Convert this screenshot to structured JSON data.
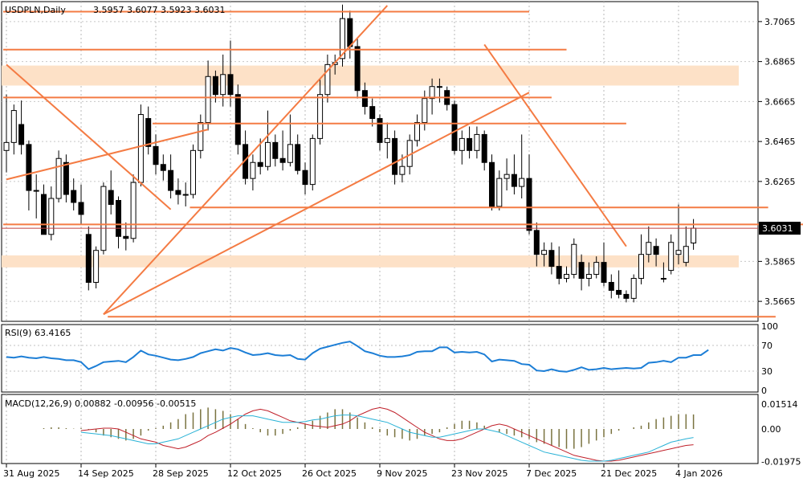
{
  "chart_data": [
    {
      "type": "candlestick",
      "symbol_label": "USDPLN,Daily",
      "ohlc_label": "3.5957 3.6077 3.5923 3.6031",
      "current_price_label": "3.6031",
      "current_price": 3.6031,
      "ylim": [
        3.5565,
        3.7165
      ],
      "y_ticks": [
        "3.7065",
        "3.6865",
        "3.6665",
        "3.6465",
        "3.6265",
        "3.5865",
        "3.5665"
      ],
      "x_ticks": [
        "31 Aug 2025",
        "14 Sep 2025",
        "28 Sep 2025",
        "12 Oct 2025",
        "26 Oct 2025",
        "9 Nov 2025",
        "23 Nov 2025",
        "7 Dec 2025",
        "21 Dec 2025",
        "4 Jan 2026"
      ],
      "candles": [
        {
          "o": 3.642,
          "h": 3.67,
          "l": 3.631,
          "c": 3.646
        },
        {
          "o": 3.646,
          "h": 3.665,
          "l": 3.64,
          "c": 3.662
        },
        {
          "o": 3.655,
          "h": 3.667,
          "l": 3.64,
          "c": 3.645
        },
        {
          "o": 3.645,
          "h": 3.647,
          "l": 3.612,
          "c": 3.622
        },
        {
          "o": 3.622,
          "h": 3.63,
          "l": 3.608,
          "c": 3.622
        },
        {
          "o": 3.62,
          "h": 3.625,
          "l": 3.6,
          "c": 3.6
        },
        {
          "o": 3.6,
          "h": 3.624,
          "l": 3.597,
          "c": 3.618
        },
        {
          "o": 3.618,
          "h": 3.642,
          "l": 3.616,
          "c": 3.638
        },
        {
          "o": 3.636,
          "h": 3.64,
          "l": 3.616,
          "c": 3.62
        },
        {
          "o": 3.622,
          "h": 3.628,
          "l": 3.612,
          "c": 3.616
        },
        {
          "o": 3.616,
          "h": 3.625,
          "l": 3.605,
          "c": 3.61
        },
        {
          "o": 3.6,
          "h": 3.604,
          "l": 3.572,
          "c": 3.576
        },
        {
          "o": 3.576,
          "h": 3.594,
          "l": 3.573,
          "c": 3.592
        },
        {
          "o": 3.592,
          "h": 3.626,
          "l": 3.59,
          "c": 3.624
        },
        {
          "o": 3.622,
          "h": 3.632,
          "l": 3.61,
          "c": 3.615
        },
        {
          "o": 3.617,
          "h": 3.619,
          "l": 3.593,
          "c": 3.599
        },
        {
          "o": 3.599,
          "h": 3.606,
          "l": 3.592,
          "c": 3.598
        },
        {
          "o": 3.598,
          "h": 3.63,
          "l": 3.596,
          "c": 3.626
        },
        {
          "o": 3.626,
          "h": 3.665,
          "l": 3.624,
          "c": 3.66
        },
        {
          "o": 3.658,
          "h": 3.664,
          "l": 3.64,
          "c": 3.644
        },
        {
          "o": 3.644,
          "h": 3.65,
          "l": 3.63,
          "c": 3.635
        },
        {
          "o": 3.635,
          "h": 3.64,
          "l": 3.627,
          "c": 3.632
        },
        {
          "o": 3.632,
          "h": 3.64,
          "l": 3.618,
          "c": 3.622
        },
        {
          "o": 3.622,
          "h": 3.628,
          "l": 3.615,
          "c": 3.62
        },
        {
          "o": 3.62,
          "h": 3.626,
          "l": 3.614,
          "c": 3.62
        },
        {
          "o": 3.62,
          "h": 3.645,
          "l": 3.618,
          "c": 3.642
        },
        {
          "o": 3.642,
          "h": 3.66,
          "l": 3.638,
          "c": 3.656
        },
        {
          "o": 3.656,
          "h": 3.687,
          "l": 3.652,
          "c": 3.679
        },
        {
          "o": 3.679,
          "h": 3.682,
          "l": 3.666,
          "c": 3.67
        },
        {
          "o": 3.67,
          "h": 3.69,
          "l": 3.664,
          "c": 3.68
        },
        {
          "o": 3.68,
          "h": 3.697,
          "l": 3.664,
          "c": 3.67
        },
        {
          "o": 3.67,
          "h": 3.675,
          "l": 3.64,
          "c": 3.645
        },
        {
          "o": 3.645,
          "h": 3.652,
          "l": 3.625,
          "c": 3.628
        },
        {
          "o": 3.628,
          "h": 3.64,
          "l": 3.622,
          "c": 3.636
        },
        {
          "o": 3.636,
          "h": 3.648,
          "l": 3.63,
          "c": 3.634
        },
        {
          "o": 3.634,
          "h": 3.662,
          "l": 3.632,
          "c": 3.646
        },
        {
          "o": 3.646,
          "h": 3.65,
          "l": 3.634,
          "c": 3.638
        },
        {
          "o": 3.638,
          "h": 3.652,
          "l": 3.632,
          "c": 3.636
        },
        {
          "o": 3.636,
          "h": 3.66,
          "l": 3.634,
          "c": 3.645
        },
        {
          "o": 3.645,
          "h": 3.65,
          "l": 3.63,
          "c": 3.632
        },
        {
          "o": 3.632,
          "h": 3.636,
          "l": 3.62,
          "c": 3.625
        },
        {
          "o": 3.625,
          "h": 3.65,
          "l": 3.622,
          "c": 3.648
        },
        {
          "o": 3.648,
          "h": 3.678,
          "l": 3.645,
          "c": 3.67
        },
        {
          "o": 3.67,
          "h": 3.69,
          "l": 3.666,
          "c": 3.685
        },
        {
          "o": 3.685,
          "h": 3.69,
          "l": 3.68,
          "c": 3.686
        },
        {
          "o": 3.688,
          "h": 3.715,
          "l": 3.684,
          "c": 3.708
        },
        {
          "o": 3.708,
          "h": 3.712,
          "l": 3.688,
          "c": 3.694
        },
        {
          "o": 3.694,
          "h": 3.698,
          "l": 3.668,
          "c": 3.672
        },
        {
          "o": 3.672,
          "h": 3.676,
          "l": 3.66,
          "c": 3.664
        },
        {
          "o": 3.664,
          "h": 3.668,
          "l": 3.654,
          "c": 3.658
        },
        {
          "o": 3.658,
          "h": 3.66,
          "l": 3.642,
          "c": 3.646
        },
        {
          "o": 3.646,
          "h": 3.656,
          "l": 3.638,
          "c": 3.648
        },
        {
          "o": 3.648,
          "h": 3.652,
          "l": 3.625,
          "c": 3.63
        },
        {
          "o": 3.63,
          "h": 3.64,
          "l": 3.626,
          "c": 3.634
        },
        {
          "o": 3.634,
          "h": 3.65,
          "l": 3.63,
          "c": 3.647
        },
        {
          "o": 3.647,
          "h": 3.66,
          "l": 3.644,
          "c": 3.656
        },
        {
          "o": 3.656,
          "h": 3.672,
          "l": 3.652,
          "c": 3.668
        },
        {
          "o": 3.668,
          "h": 3.678,
          "l": 3.66,
          "c": 3.674
        },
        {
          "o": 3.674,
          "h": 3.678,
          "l": 3.666,
          "c": 3.674
        },
        {
          "o": 3.672,
          "h": 3.674,
          "l": 3.662,
          "c": 3.665
        },
        {
          "o": 3.665,
          "h": 3.667,
          "l": 3.64,
          "c": 3.642
        },
        {
          "o": 3.642,
          "h": 3.652,
          "l": 3.635,
          "c": 3.648
        },
        {
          "o": 3.648,
          "h": 3.654,
          "l": 3.638,
          "c": 3.642
        },
        {
          "o": 3.642,
          "h": 3.654,
          "l": 3.638,
          "c": 3.65
        },
        {
          "o": 3.65,
          "h": 3.652,
          "l": 3.632,
          "c": 3.636
        },
        {
          "o": 3.636,
          "h": 3.64,
          "l": 3.612,
          "c": 3.614
        },
        {
          "o": 3.614,
          "h": 3.632,
          "l": 3.612,
          "c": 3.628
        },
        {
          "o": 3.628,
          "h": 3.638,
          "l": 3.622,
          "c": 3.63
        },
        {
          "o": 3.63,
          "h": 3.64,
          "l": 3.62,
          "c": 3.624
        },
        {
          "o": 3.624,
          "h": 3.65,
          "l": 3.618,
          "c": 3.628
        },
        {
          "o": 3.628,
          "h": 3.64,
          "l": 3.6,
          "c": 3.602
        },
        {
          "o": 3.602,
          "h": 3.606,
          "l": 3.584,
          "c": 3.59
        },
        {
          "o": 3.59,
          "h": 3.596,
          "l": 3.584,
          "c": 3.592
        },
        {
          "o": 3.592,
          "h": 3.596,
          "l": 3.58,
          "c": 3.584
        },
        {
          "o": 3.584,
          "h": 3.594,
          "l": 3.575,
          "c": 3.578
        },
        {
          "o": 3.578,
          "h": 3.584,
          "l": 3.576,
          "c": 3.58
        },
        {
          "o": 3.58,
          "h": 3.598,
          "l": 3.578,
          "c": 3.595
        },
        {
          "o": 3.586,
          "h": 3.59,
          "l": 3.572,
          "c": 3.578
        },
        {
          "o": 3.578,
          "h": 3.586,
          "l": 3.574,
          "c": 3.58
        },
        {
          "o": 3.58,
          "h": 3.589,
          "l": 3.578,
          "c": 3.586
        },
        {
          "o": 3.586,
          "h": 3.596,
          "l": 3.574,
          "c": 3.576
        },
        {
          "o": 3.576,
          "h": 3.58,
          "l": 3.568,
          "c": 3.572
        },
        {
          "o": 3.572,
          "h": 3.582,
          "l": 3.568,
          "c": 3.57
        },
        {
          "o": 3.57,
          "h": 3.572,
          "l": 3.566,
          "c": 3.568
        },
        {
          "o": 3.568,
          "h": 3.58,
          "l": 3.566,
          "c": 3.578
        },
        {
          "o": 3.578,
          "h": 3.6,
          "l": 3.575,
          "c": 3.59
        },
        {
          "o": 3.59,
          "h": 3.604,
          "l": 3.586,
          "c": 3.596
        },
        {
          "o": 3.594,
          "h": 3.598,
          "l": 3.584,
          "c": 3.59
        },
        {
          "o": 3.578,
          "h": 3.586,
          "l": 3.576,
          "c": 3.578
        },
        {
          "o": 3.582,
          "h": 3.6,
          "l": 3.58,
          "c": 3.596
        },
        {
          "o": 3.59,
          "h": 3.615,
          "l": 3.585,
          "c": 3.592
        },
        {
          "o": 3.586,
          "h": 3.604,
          "l": 3.584,
          "c": 3.594
        },
        {
          "o": 3.5957,
          "h": 3.6077,
          "l": 3.5923,
          "c": 3.6031
        }
      ],
      "annotations": {
        "zones": [
          [
            3.6745,
            3.6845
          ],
          [
            3.5835,
            3.5895
          ]
        ],
        "hlines": [
          {
            "y": 3.7115,
            "i0": 0,
            "i1": 70
          },
          {
            "y": 3.6925,
            "i0": 0,
            "i1": 75
          },
          {
            "y": 3.6685,
            "i0": 0,
            "i1": 73
          },
          {
            "y": 3.6555,
            "i0": 20,
            "i1": 83
          },
          {
            "y": 3.6135,
            "i0": 25,
            "i1": 102
          },
          {
            "y": 3.605,
            "i0": 0,
            "i1": 111
          },
          {
            "y": 3.5588,
            "i0": 14,
            "i1": 103
          }
        ],
        "trendlines": [
          [
            0,
            3.685,
            22,
            3.6125
          ],
          [
            0,
            3.6275,
            27,
            3.6525
          ],
          [
            13,
            3.56,
            51,
            3.7145
          ],
          [
            13,
            3.56,
            70,
            3.671
          ],
          [
            64,
            3.695,
            83,
            3.594
          ]
        ]
      },
      "colors": {
        "bull": "#ffffff",
        "bear": "#000000",
        "line": "#f47b43",
        "zone": "#fde1c7",
        "rsi": "#1c7ed6",
        "macd_hist": "#7a7340",
        "macd_main": "#c0202a",
        "macd_signal": "#29b2d6"
      }
    },
    {
      "type": "line",
      "label": "RSI(9) 63.4165",
      "ylim": [
        0,
        100
      ],
      "y_ticks": [
        "100",
        "70",
        "30",
        "0"
      ],
      "levels": [
        70,
        30
      ],
      "values": [
        52,
        51,
        53,
        51,
        50,
        52,
        50,
        49,
        47,
        47,
        44,
        33,
        38,
        44,
        45,
        46,
        44,
        52,
        62,
        56,
        54,
        51,
        48,
        47,
        49,
        52,
        58,
        61,
        64,
        62,
        66,
        64,
        59,
        55,
        56,
        58,
        55,
        54,
        55,
        49,
        48,
        58,
        65,
        68,
        71,
        74,
        76,
        69,
        61,
        58,
        54,
        52,
        52,
        53,
        55,
        60,
        61,
        61,
        67,
        67,
        59,
        60,
        59,
        60,
        56,
        45,
        48,
        47,
        46,
        41,
        40,
        31,
        30,
        33,
        30,
        29,
        32,
        36,
        32,
        33,
        35,
        33,
        34,
        35,
        34,
        35,
        43,
        44,
        46,
        44,
        51,
        51,
        55,
        55,
        63
      ]
    },
    {
      "type": "histogram+line",
      "label": "MACD(12,26,9) 0.00882 -0.00956 -0.00515",
      "ylim": [
        -0.02,
        0.02
      ],
      "y_ticks": [
        "0.01514",
        "0.00",
        "-0.01975"
      ],
      "histogram": [
        0.0005,
        0.001,
        0.001,
        0.0005,
        0.0002,
        0.0005,
        -0.0005,
        -0.002,
        -0.004,
        -0.005,
        -0.006,
        -0.007,
        -0.006,
        -0.004,
        -0.001,
        0.0005,
        0.002,
        0.004,
        0.006,
        0.009,
        0.01,
        0.012,
        0.013,
        0.012,
        0.011,
        0.009,
        0.006,
        0.003,
        0.0005,
        -0.002,
        -0.004,
        -0.004,
        -0.003,
        -0.001,
        0.001,
        0.003,
        0.005,
        0.008,
        0.01,
        0.012,
        0.012,
        0.01,
        0.007,
        0.004,
        0.001,
        -0.002,
        -0.004,
        -0.005,
        -0.006,
        -0.007,
        -0.006,
        -0.004,
        -0.003,
        -0.002,
        0.001,
        0.003,
        0.005,
        0.005,
        0.004,
        0.002,
        0.0,
        -0.002,
        -0.003,
        -0.004,
        -0.005,
        -0.006,
        -0.008,
        -0.009,
        -0.01,
        -0.011,
        -0.012,
        -0.012,
        -0.011,
        -0.009,
        -0.007,
        -0.005,
        -0.003,
        -0.001,
        0.0,
        0.001,
        0.002,
        0.004,
        0.006,
        0.007,
        0.008,
        0.009,
        0.009,
        0.00882
      ],
      "main": [
        -0.001,
        -0.0005,
        0.0,
        0.0005,
        0.0005,
        0.0,
        -0.002,
        -0.004,
        -0.006,
        -0.007,
        -0.008,
        -0.01,
        -0.011,
        -0.012,
        -0.011,
        -0.009,
        -0.007,
        -0.004,
        -0.002,
        0.0005,
        0.003,
        0.006,
        0.009,
        0.011,
        0.012,
        0.011,
        0.009,
        0.007,
        0.005,
        0.004,
        0.003,
        0.002,
        0.0015,
        0.001,
        0.002,
        0.003,
        0.005,
        0.008,
        0.01,
        0.012,
        0.013,
        0.012,
        0.01,
        0.007,
        0.004,
        0.001,
        -0.002,
        -0.004,
        -0.006,
        -0.007,
        -0.007,
        -0.006,
        -0.004,
        -0.002,
        0.0,
        0.002,
        0.003,
        0.002,
        0.0,
        -0.002,
        -0.004,
        -0.006,
        -0.008,
        -0.01,
        -0.012,
        -0.014,
        -0.016,
        -0.017,
        -0.018,
        -0.019,
        -0.0195,
        -0.0195,
        -0.019,
        -0.018,
        -0.017,
        -0.016,
        -0.015,
        -0.014,
        -0.013,
        -0.012,
        -0.011,
        -0.01,
        -0.00956
      ],
      "signal": [
        -0.002,
        -0.0025,
        -0.003,
        -0.0035,
        -0.004,
        -0.005,
        -0.006,
        -0.007,
        -0.008,
        -0.009,
        -0.009,
        -0.008,
        -0.007,
        -0.006,
        -0.004,
        -0.002,
        0.0,
        0.002,
        0.004,
        0.006,
        0.007,
        0.008,
        0.008,
        0.008,
        0.007,
        0.006,
        0.005,
        0.004,
        0.004,
        0.004,
        0.0045,
        0.0055,
        0.006,
        0.007,
        0.008,
        0.0085,
        0.0085,
        0.008,
        0.007,
        0.006,
        0.005,
        0.004,
        0.002,
        0.0,
        -0.002,
        -0.003,
        -0.004,
        -0.005,
        -0.005,
        -0.004,
        -0.003,
        -0.002,
        -0.001,
        0.0,
        0.0,
        -0.001,
        -0.002,
        -0.004,
        -0.006,
        -0.008,
        -0.01,
        -0.012,
        -0.014,
        -0.015,
        -0.016,
        -0.017,
        -0.018,
        -0.019,
        -0.0195,
        -0.0195,
        -0.0195,
        -0.019,
        -0.018,
        -0.017,
        -0.016,
        -0.015,
        -0.014,
        -0.012,
        -0.01,
        -0.008,
        -0.007,
        -0.006,
        -0.00515
      ]
    }
  ]
}
